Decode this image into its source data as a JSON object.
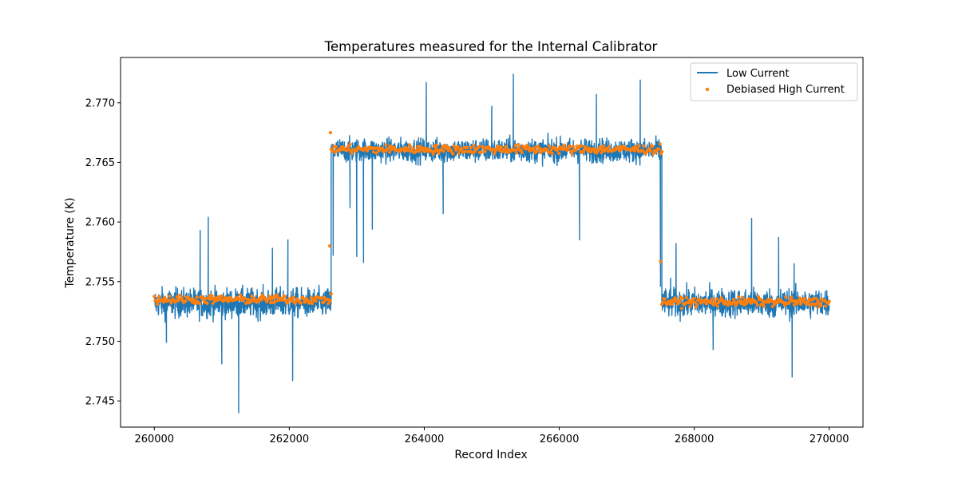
{
  "chart_data": {
    "type": "line",
    "title": "Temperatures measured for the Internal Calibrator",
    "xlabel": "Record Index",
    "ylabel": "Temperature (K)",
    "xlim": [
      259500,
      270500
    ],
    "ylim": [
      2.7428,
      2.7738
    ],
    "x_ticks": [
      260000,
      262000,
      264000,
      266000,
      268000,
      270000
    ],
    "x_tick_labels": [
      "260000",
      "262000",
      "264000",
      "266000",
      "268000",
      "270000"
    ],
    "y_ticks": [
      2.745,
      2.75,
      2.755,
      2.76,
      2.765,
      2.77
    ],
    "y_tick_labels": [
      "2.745",
      "2.750",
      "2.755",
      "2.760",
      "2.765",
      "2.770"
    ],
    "grid": false,
    "legend_position": "top-right",
    "series": [
      {
        "name": "Low Current",
        "kind": "line",
        "color": "#1f77b4",
        "segments": [
          {
            "x_start": 260000,
            "x_end": 262620,
            "level": 2.7532,
            "noise": 0.0011
          },
          {
            "x_start": 262620,
            "x_end": 267520,
            "level": 2.766,
            "noise": 0.0009
          },
          {
            "x_start": 267520,
            "x_end": 270000,
            "level": 2.7532,
            "noise": 0.0011
          }
        ],
        "spikes": [
          {
            "x": 260180,
            "y": 2.7499
          },
          {
            "x": 260680,
            "y": 2.7593
          },
          {
            "x": 260800,
            "y": 2.7604
          },
          {
            "x": 261000,
            "y": 2.7481
          },
          {
            "x": 261250,
            "y": 2.744
          },
          {
            "x": 261750,
            "y": 2.7578
          },
          {
            "x": 261980,
            "y": 2.7585
          },
          {
            "x": 262050,
            "y": 2.7467
          },
          {
            "x": 262650,
            "y": 2.7572
          },
          {
            "x": 262900,
            "y": 2.7612
          },
          {
            "x": 263000,
            "y": 2.7571
          },
          {
            "x": 263100,
            "y": 2.7566
          },
          {
            "x": 263230,
            "y": 2.7594
          },
          {
            "x": 264030,
            "y": 2.7717
          },
          {
            "x": 264280,
            "y": 2.7607
          },
          {
            "x": 265000,
            "y": 2.7697
          },
          {
            "x": 265320,
            "y": 2.7724
          },
          {
            "x": 266300,
            "y": 2.7585
          },
          {
            "x": 266550,
            "y": 2.7707
          },
          {
            "x": 267200,
            "y": 2.7719
          },
          {
            "x": 267500,
            "y": 2.7546
          },
          {
            "x": 267650,
            "y": 2.7553
          },
          {
            "x": 267730,
            "y": 2.7582
          },
          {
            "x": 268280,
            "y": 2.7493
          },
          {
            "x": 268850,
            "y": 2.7603
          },
          {
            "x": 269250,
            "y": 2.7587
          },
          {
            "x": 269450,
            "y": 2.747
          },
          {
            "x": 269480,
            "y": 2.7565
          }
        ]
      },
      {
        "name": "Debiased High Current",
        "kind": "scatter",
        "color": "#ff7f0e",
        "segments": [
          {
            "x_start": 260000,
            "x_end": 262620,
            "level": 2.7535,
            "noise": 0.00018
          },
          {
            "x_start": 262620,
            "x_end": 267520,
            "level": 2.7661,
            "noise": 0.00018
          },
          {
            "x_start": 267520,
            "x_end": 270000,
            "level": 2.7533,
            "noise": 0.00018
          }
        ],
        "outliers": [
          {
            "x": 262610,
            "y": 2.7675
          },
          {
            "x": 262600,
            "y": 2.758
          },
          {
            "x": 267500,
            "y": 2.7567
          }
        ]
      }
    ]
  }
}
